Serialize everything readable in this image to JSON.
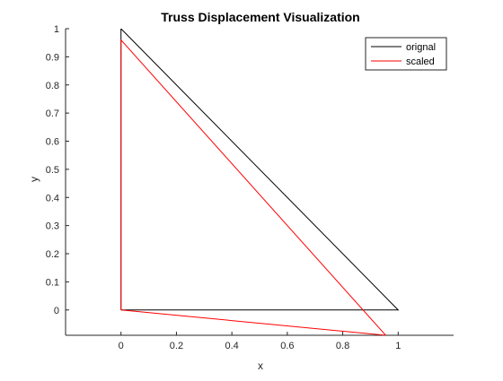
{
  "chart_data": {
    "type": "line",
    "title": "Truss Displacement Visualization",
    "xlabel": "x",
    "ylabel": "y",
    "xlim": [
      -0.2,
      1.2
    ],
    "ylim": [
      -0.09,
      1.0
    ],
    "xticks": [
      "0",
      "0.2",
      "0.4",
      "0.6",
      "0.8",
      "1"
    ],
    "xtick_values": [
      0,
      0.2,
      0.4,
      0.6,
      0.8,
      1
    ],
    "yticks": [
      "0",
      "0.1",
      "0.2",
      "0.3",
      "0.4",
      "0.5",
      "0.6",
      "0.7",
      "0.8",
      "0.9",
      "1"
    ],
    "ytick_values": [
      0,
      0.1,
      0.2,
      0.3,
      0.4,
      0.5,
      0.6,
      0.7,
      0.8,
      0.9,
      1
    ],
    "grid": false,
    "legend_position": "top-right",
    "series": [
      {
        "name": "orignal",
        "color": "#000000",
        "x": [
          0,
          1,
          0,
          0
        ],
        "y": [
          0,
          0,
          1,
          0
        ]
      },
      {
        "name": "scaled",
        "color": "#ff0000",
        "x": [
          0,
          0.955,
          0,
          0
        ],
        "y": [
          0,
          -0.09,
          0.96,
          0
        ]
      }
    ]
  }
}
